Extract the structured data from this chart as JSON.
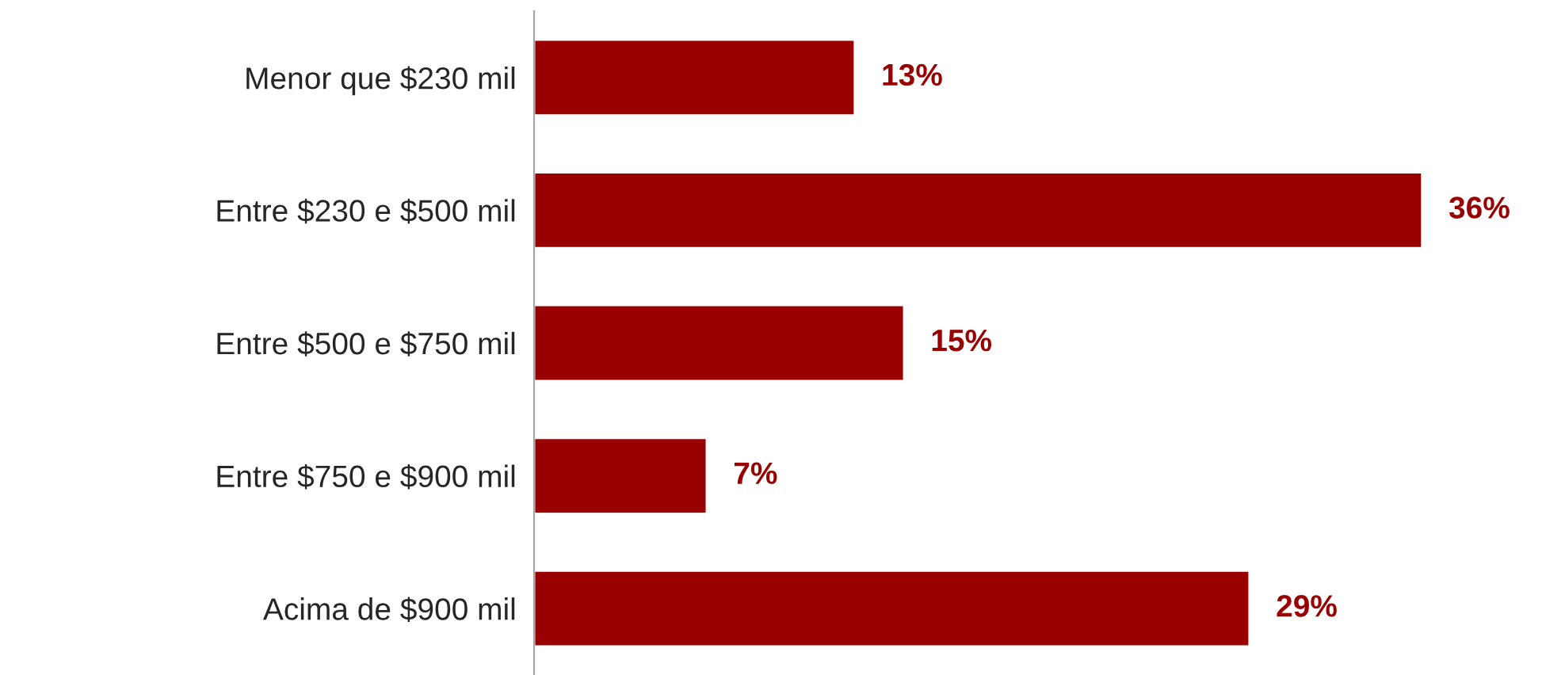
{
  "chart_data": {
    "type": "bar",
    "orientation": "horizontal",
    "categories": [
      "Menor que $230 mil",
      "Entre $230 e $500 mil",
      "Entre $500 e $750 mil",
      "Entre $750 e $900 mil",
      "Acima de $900 mil"
    ],
    "values": [
      13,
      36,
      15,
      7,
      29
    ],
    "value_labels": [
      "13%",
      "36%",
      "15%",
      "7%",
      "29%"
    ],
    "color": "#990000",
    "tick_labels": "y"
  }
}
